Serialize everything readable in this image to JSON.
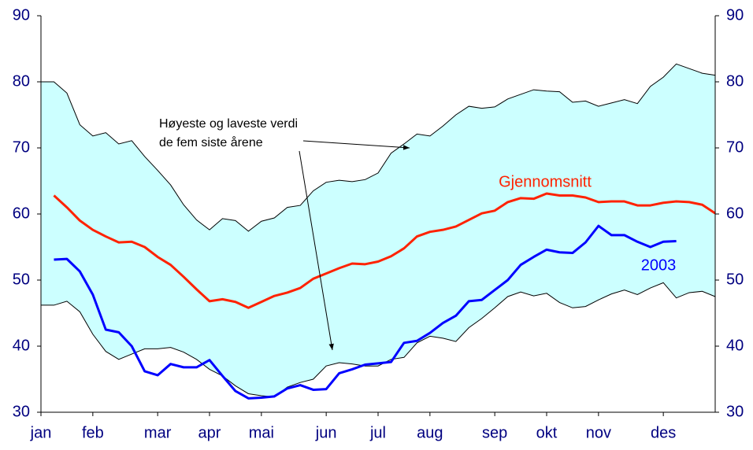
{
  "chart_data": {
    "type": "line",
    "categories": [
      "jan",
      null,
      null,
      null,
      "feb",
      null,
      null,
      null,
      null,
      "mar",
      null,
      null,
      null,
      "apr",
      null,
      null,
      null,
      "mai",
      null,
      null,
      null,
      null,
      "jun",
      null,
      null,
      null,
      "jul",
      null,
      null,
      null,
      "aug",
      null,
      null,
      null,
      null,
      "sep",
      null,
      null,
      null,
      "okt",
      null,
      null,
      null,
      "nov",
      null,
      null,
      null,
      null,
      "des",
      null,
      null,
      null,
      null
    ],
    "band": {
      "label": [
        "Høyeste og laveste verdi",
        "de fem siste årene"
      ],
      "color": "#ccffff",
      "upper": [
        80,
        80,
        78.3,
        73.5,
        71.8,
        72.3,
        70.6,
        71.1,
        68.7,
        66.6,
        64.4,
        61.4,
        59.1,
        57.6,
        59.3,
        59.0,
        57.4,
        58.9,
        59.4,
        61.0,
        61.3,
        63.5,
        64.8,
        65.1,
        64.9,
        65.2,
        66.2,
        69.2,
        70.6,
        72.1,
        71.8,
        73.3,
        75.0,
        76.3,
        76.0,
        76.2,
        77.4,
        78.1,
        78.8,
        78.6,
        78.5,
        76.9,
        77.1,
        76.3,
        76.8,
        77.3,
        76.7,
        79.3,
        80.7,
        82.7,
        82.0,
        81.3,
        81.0
      ],
      "lower": [
        46.2,
        46.2,
        46.8,
        45.2,
        41.8,
        39.2,
        38.0,
        38.8,
        39.6,
        39.6,
        39.8,
        39.1,
        38.0,
        36.5,
        35.5,
        34.0,
        32.8,
        32.5,
        32.3,
        33.8,
        34.5,
        35.0,
        37.0,
        37.5,
        37.3,
        37.0,
        37.0,
        38.0,
        38.3,
        40.5,
        41.5,
        41.2,
        40.7,
        42.8,
        44.2,
        45.8,
        47.5,
        48.2,
        47.6,
        48.0,
        46.6,
        45.8,
        46.0,
        47.0,
        47.9,
        48.5,
        47.8,
        48.8,
        49.6,
        47.3,
        48.1,
        48.3,
        47.5
      ]
    },
    "series": [
      {
        "name": "Gjennomsnitt",
        "color": "#ff2200",
        "values": [
          null,
          62.8,
          61.0,
          59.0,
          57.6,
          56.6,
          55.7,
          55.8,
          55.0,
          53.5,
          52.3,
          50.5,
          48.6,
          46.8,
          47.1,
          46.7,
          45.8,
          46.7,
          47.6,
          48.1,
          48.8,
          50.2,
          51.0,
          51.8,
          52.5,
          52.4,
          52.8,
          53.6,
          54.8,
          56.6,
          57.3,
          57.6,
          58.1,
          59.1,
          60.1,
          60.5,
          61.8,
          62.4,
          62.3,
          63.1,
          62.8,
          62.8,
          62.5,
          61.8,
          61.9,
          61.9,
          61.3,
          61.3,
          61.7,
          61.9,
          61.8,
          61.4,
          60.1
        ]
      },
      {
        "name": "2003",
        "color": "#0000ff",
        "values": [
          null,
          53.1,
          53.2,
          51.3,
          47.8,
          42.5,
          42.1,
          40.0,
          36.2,
          35.6,
          37.3,
          36.8,
          36.8,
          37.9,
          35.5,
          33.2,
          32.1,
          32.2,
          32.4,
          33.6,
          34.1,
          33.4,
          33.5,
          35.9,
          36.5,
          37.2,
          37.4,
          37.6,
          40.5,
          40.8,
          42.0,
          43.5,
          44.6,
          46.8,
          47.0,
          48.5,
          50.0,
          52.3,
          53.5,
          54.6,
          54.2,
          54.1,
          55.7,
          58.2,
          56.8,
          56.8,
          55.8,
          55.0,
          55.8,
          55.9,
          null,
          null,
          null
        ]
      }
    ],
    "ylim": [
      30,
      90
    ],
    "yticks": [
      30,
      40,
      50,
      60,
      70,
      80,
      90
    ],
    "y2lim": [
      30,
      90
    ],
    "y2ticks": [
      30,
      40,
      50,
      60,
      70,
      80,
      90
    ],
    "grid": false
  }
}
